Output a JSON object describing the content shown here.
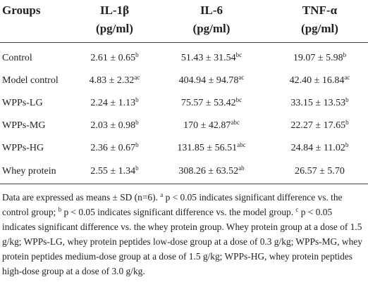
{
  "table": {
    "header": [
      {
        "name": "Groups"
      },
      {
        "name": "IL-1β",
        "unit": "(pg/ml)"
      },
      {
        "name": "IL-6",
        "unit": "(pg/ml)"
      },
      {
        "name": "TNF-α",
        "unit": "(pg/ml)"
      }
    ],
    "rows": [
      [
        {
          "text": "Control"
        },
        {
          "text": "2.61 ± 0.65",
          "sup": "b"
        },
        {
          "text": "51.43 ± 31.54",
          "sup": "bc"
        },
        {
          "text": "19.07 ± 5.98",
          "sup": "b"
        }
      ],
      [
        {
          "text": "Model control"
        },
        {
          "text": "4.83 ± 2.32",
          "sup": "ac"
        },
        {
          "text": "404.94 ± 94.78",
          "sup": "ac"
        },
        {
          "text": "42.40 ± 16.84",
          "sup": "ac"
        }
      ],
      [
        {
          "text": "WPPs-LG"
        },
        {
          "text": "2.24 ± 1.13",
          "sup": "b"
        },
        {
          "text": "75.57 ± 53.42",
          "sup": "bc"
        },
        {
          "text": "33.15 ± 13.53",
          "sup": "b"
        }
      ],
      [
        {
          "text": "WPPs-MG"
        },
        {
          "text": "2.03 ± 0.98",
          "sup": "b"
        },
        {
          "text": "170 ± 42.87",
          "sup": "abc"
        },
        {
          "text": "22.27 ± 17.65",
          "sup": "b"
        }
      ],
      [
        {
          "text": "WPPs-HG"
        },
        {
          "text": "2.36 ± 0.67",
          "sup": "b"
        },
        {
          "text": "131.85 ± 56.51",
          "sup": "abc"
        },
        {
          "text": "24.84 ± 11.02",
          "sup": "b"
        }
      ],
      [
        {
          "text": "Whey protein"
        },
        {
          "text": "2.55 ± 1.34",
          "sup": "b"
        },
        {
          "text": "308.26 ± 63.52",
          "sup": "ab"
        },
        {
          "text": "26.57 ± 5.70"
        }
      ]
    ]
  },
  "footnote": [
    {
      "text": "Data are expressed as means ± SD (n=6). "
    },
    {
      "sup": "a"
    },
    {
      "text": " p < 0.05 indicates significant difference vs. the control group; "
    },
    {
      "sup": "b"
    },
    {
      "text": " p < 0.05 indicates significant difference vs. the model group. "
    },
    {
      "sup": "c"
    },
    {
      "text": " p < 0.05 indicates significant difference vs. the whey protein group. Whey protein group at a dose of 1.5 g/kg; WPPs-LG, whey protein peptides low-dose group at a dose of 0.3 g/kg; WPPs-MG, whey protein peptides medium-dose group at a dose of 1.5 g/kg; WPPs-HG, whey protein peptides high-dose group at a dose of 3.0 g/kg."
    }
  ]
}
